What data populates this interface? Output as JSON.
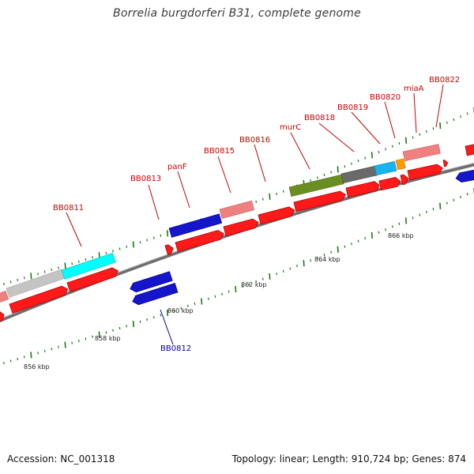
{
  "title": "Borrelia burgdorferi B31, complete genome",
  "footer": {
    "accession": "Accession: NC_001318",
    "info": "Topology: linear; Length: 910,724 bp; Genes: 874"
  },
  "colors": {
    "strand_forward": "#ff0000",
    "strand_reverse": "#0000cc",
    "label_forward": "#cc0000",
    "label_reverse": "#0000aa",
    "backbone": "#777777",
    "tick": "#1a7a1a"
  },
  "scale": {
    "unit": "kbp",
    "labels": [
      "856 kbp",
      "858 kbp",
      "860 kbp",
      "862 kbp",
      "864 kbp",
      "866 kbp"
    ]
  },
  "gene_labels": [
    {
      "text": "BB0811",
      "strand": "forward"
    },
    {
      "text": "BB0812",
      "strand": "reverse"
    },
    {
      "text": "BB0813",
      "strand": "forward"
    },
    {
      "text": "panF",
      "strand": "forward"
    },
    {
      "text": "BB0815",
      "strand": "forward"
    },
    {
      "text": "BB0816",
      "strand": "forward"
    },
    {
      "text": "murC",
      "strand": "forward"
    },
    {
      "text": "BB0818",
      "strand": "forward"
    },
    {
      "text": "BB0819",
      "strand": "forward"
    },
    {
      "text": "BB0820",
      "strand": "forward"
    },
    {
      "text": "miaA",
      "strand": "forward"
    },
    {
      "text": "BB0822",
      "strand": "forward"
    }
  ]
}
